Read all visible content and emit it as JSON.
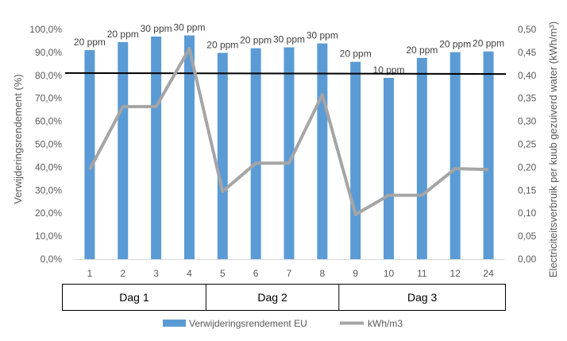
{
  "chart_data": {
    "type": "bar",
    "categories": [
      "1",
      "2",
      "3",
      "4",
      "5",
      "6",
      "7",
      "8",
      "9",
      "10",
      "11",
      "12",
      "24"
    ],
    "series": [
      {
        "name": "Verwijderingsrendement EU",
        "type": "bar",
        "axis": "left",
        "color": "#5B9BD5",
        "values": [
          91.0,
          94.5,
          96.9,
          97.4,
          89.8,
          91.8,
          92.2,
          93.9,
          85.9,
          78.9,
          87.6,
          90.1,
          90.4
        ],
        "labels": [
          "20 ppm",
          "20 ppm",
          "30 ppm",
          "30 ppm",
          "20 ppm",
          "20 ppm",
          "30 ppm",
          "30 ppm",
          "20 ppm",
          "10 ppm",
          "20 ppm",
          "20 ppm",
          "20 ppm"
        ]
      },
      {
        "name": "kWh/m3",
        "type": "line",
        "axis": "right",
        "color": "#A5A5A5",
        "values": [
          0.195,
          0.332,
          0.332,
          0.458,
          0.147,
          0.209,
          0.209,
          0.358,
          0.097,
          0.139,
          0.139,
          0.197,
          0.195
        ]
      }
    ],
    "reference_line": {
      "axis": "left",
      "value_start": 81.0,
      "value_end": 80.6,
      "color": "#000000"
    },
    "ylabel": "Verwijderingsrendement (%)",
    "y2label": "Electriciteitsverbruik per kuub gezuiverd water (kWh/m³)",
    "ylim": [
      0,
      100
    ],
    "y2lim": [
      0,
      0.5
    ],
    "yticks": [
      "0,0%",
      "10,0%",
      "20,0%",
      "30,0%",
      "40,0%",
      "50,0%",
      "60,0%",
      "70,0%",
      "80,0%",
      "90,0%",
      "100,0%"
    ],
    "y2ticks": [
      "0,00",
      "0,05",
      "0,10",
      "0,15",
      "0,20",
      "0,25",
      "0,30",
      "0,35",
      "0,40",
      "0,45",
      "0,50"
    ],
    "groups": [
      {
        "label": "Dag 1",
        "from": 0,
        "to": 3
      },
      {
        "label": "Dag 2",
        "from": 4,
        "to": 7
      },
      {
        "label": "Dag 3",
        "from": 8,
        "to": 12
      }
    ],
    "grid": false,
    "legend": "bottom"
  }
}
